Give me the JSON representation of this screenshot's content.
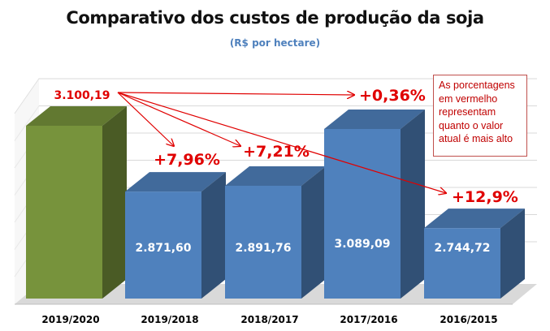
{
  "title": "Comparativo dos custos de produção da soja",
  "subtitle": "(R$ por hectare)",
  "note": "As porcentagens em vermelho representam quanto o valor atual é mais alto",
  "colors": {
    "current_bar": "#77933c",
    "other_bars": "#4f81bd",
    "annotation": "#e00000",
    "floor": "#d9d9d9"
  },
  "chart_data": {
    "type": "bar",
    "title": "Comparativo dos custos de produção da soja",
    "subtitle": "(R$ por hectare)",
    "categories": [
      "2019/2020",
      "2019/2018",
      "2018/2017",
      "2017/2016",
      "2016/2015"
    ],
    "values": [
      3100.19,
      2871.6,
      2891.76,
      3089.09,
      2744.72
    ],
    "value_labels": [
      "3.100,19",
      "2.871,60",
      "2.891,76",
      "3.089,09",
      "2.744,72"
    ],
    "ylim": [
      2500,
      3200
    ],
    "grid": true,
    "style": "3d-column",
    "annotations": [
      {
        "target": "2019/2018",
        "text": "+7,96%"
      },
      {
        "target": "2018/2017",
        "text": "+7,21%"
      },
      {
        "target": "2017/2016",
        "text": "+0,36%"
      },
      {
        "target": "2016/2015",
        "text": "+12,9%"
      }
    ]
  }
}
